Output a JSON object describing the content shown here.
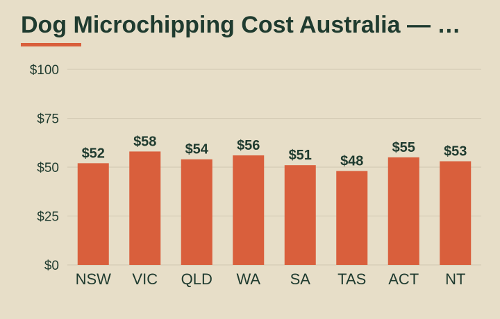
{
  "chart_data": {
    "type": "bar",
    "title": "Dog Microchipping Cost Australia — …",
    "categories": [
      "NSW",
      "VIC",
      "QLD",
      "WA",
      "SA",
      "TAS",
      "ACT",
      "NT"
    ],
    "values": [
      52,
      58,
      54,
      56,
      51,
      48,
      55,
      53
    ],
    "value_labels": [
      "$52",
      "$58",
      "$54",
      "$56",
      "$51",
      "$48",
      "$55",
      "$53"
    ],
    "y_ticks": [
      0,
      25,
      50,
      75,
      100
    ],
    "y_tick_labels": [
      "$0",
      "$25",
      "$50",
      "$75",
      "$100"
    ],
    "ylim": [
      0,
      100
    ],
    "grid": true,
    "legend": "none"
  },
  "colors": {
    "background": "#e7dec8",
    "bar": "#d95f3c",
    "text": "#1f3b2f",
    "grid": "#cfc6b0",
    "accent": "#d95f3c"
  }
}
